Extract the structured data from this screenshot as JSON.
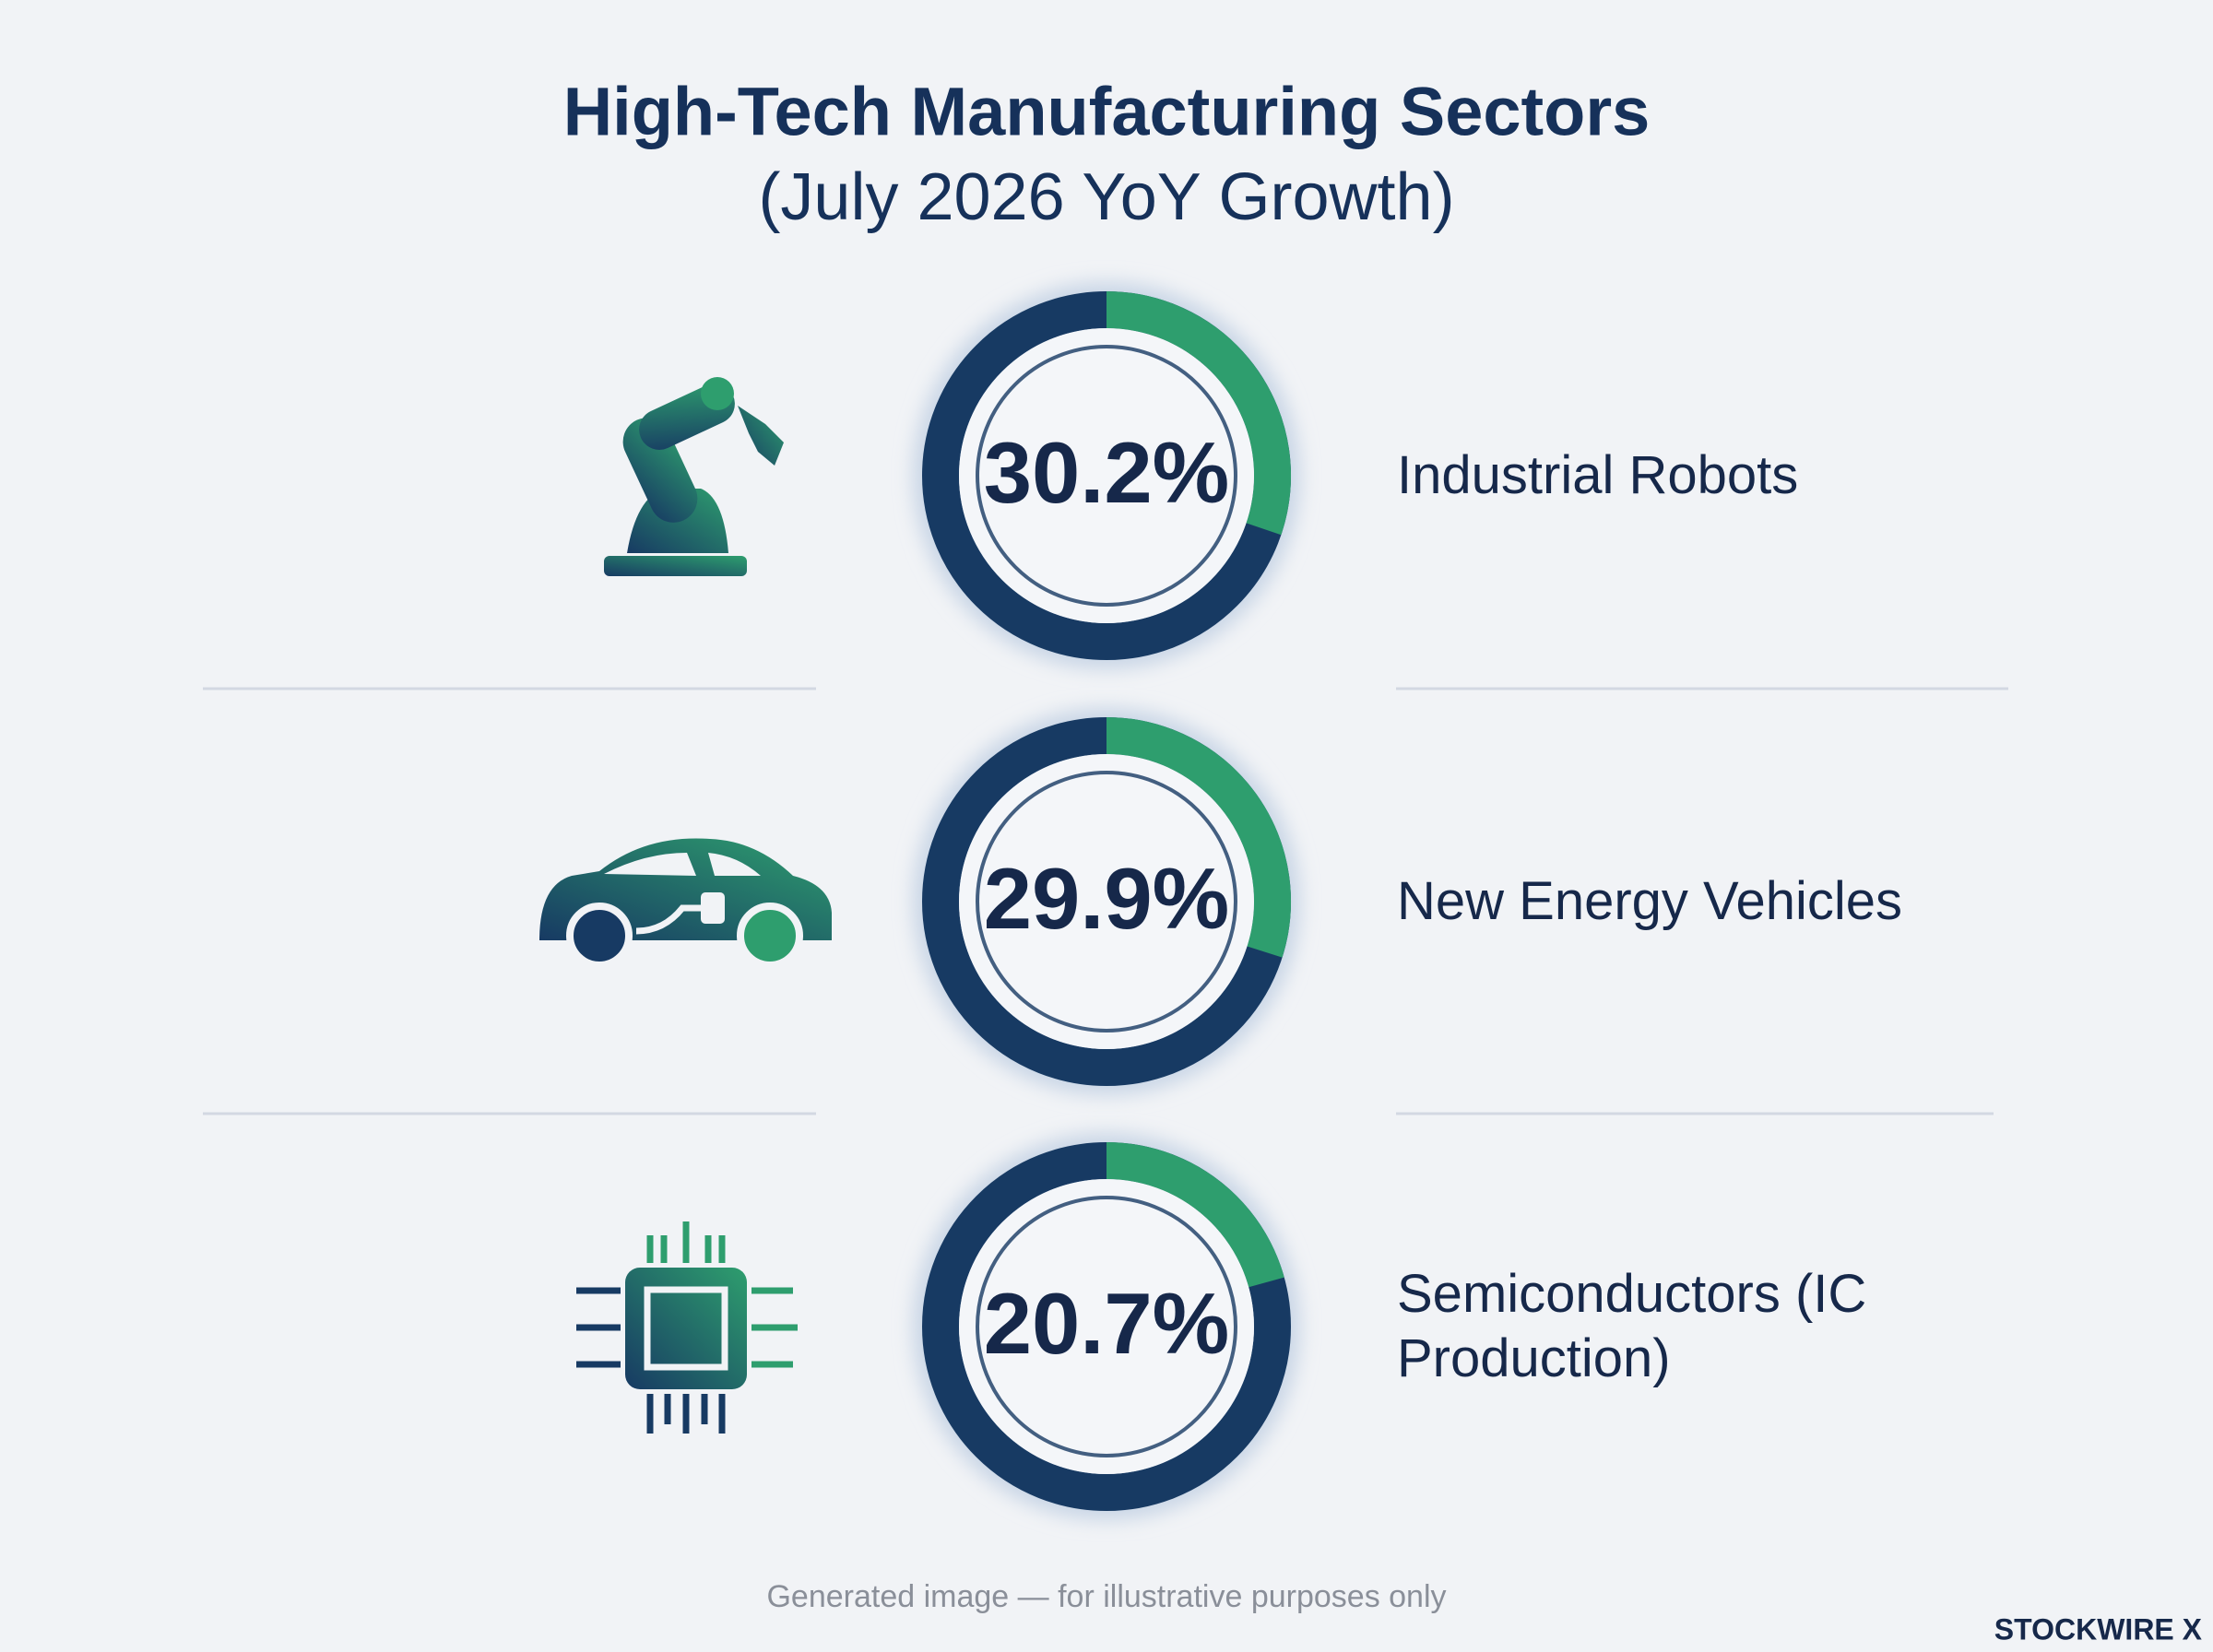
{
  "chart_data": {
    "type": "gauge",
    "title": "High-Tech Manufacturing Sectors",
    "subtitle": "(July 2026 YoY Growth)",
    "categories": [
      "Industrial Robots",
      "New Energy Vehicles",
      "Semiconductors (IC Production)"
    ],
    "values": [
      30.2,
      29.9,
      20.7
    ],
    "value_labels": [
      "30.2%",
      "29.9%",
      "20.7%"
    ],
    "ylim": [
      0,
      100
    ],
    "color": "#2e9e6e",
    "track_color": "#173a63",
    "footnote": "Generated image — for illustrative purposes only",
    "brand": "STOCKWIRE X"
  }
}
